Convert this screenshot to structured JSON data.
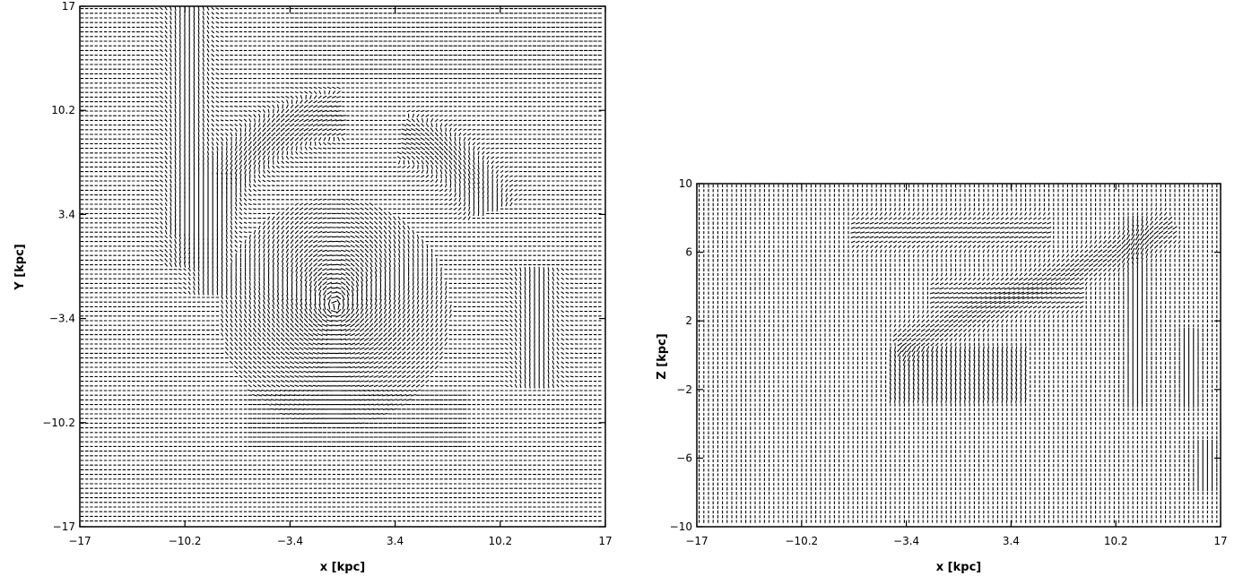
{
  "chart_data": [
    {
      "type": "vector-field",
      "title": "",
      "xlabel": "x [kpc]",
      "ylabel": "Y [kpc]",
      "xlim": [
        -17,
        17
      ],
      "ylim": [
        -17,
        17
      ],
      "xticks": [
        -17,
        -10.2,
        -3.4,
        3.4,
        10.2,
        17
      ],
      "yticks": [
        -17,
        -10.2,
        -3.4,
        3.4,
        10.2,
        17
      ],
      "xtick_labels": [
        "−17",
        "−10.2",
        "−3.4",
        "3.4",
        "10.2",
        "17"
      ],
      "ytick_labels": [
        "−17",
        "−10.2",
        "−3.4",
        "3.4",
        "10.2",
        "17"
      ],
      "grid": false,
      "colors": {
        "ink": "#000000",
        "background": "#ffffff"
      },
      "features": {
        "dense_disk": {
          "center": [
            -0.5,
            -3.0
          ],
          "radius": 7.5
        },
        "arcs": [
          {
            "center": [
              1.0,
              -1.0
            ],
            "radius": 11.0,
            "from_deg": 95,
            "to_deg": 175
          },
          {
            "center": [
              2.5,
              1.0
            ],
            "radius": 7.5,
            "from_deg": 20,
            "to_deg": 80
          }
        ],
        "vertical_streaks": [
          {
            "x": -10.0,
            "y_from": 2.0,
            "y_to": 17.0
          },
          {
            "x": -8.5,
            "y_from": -2.0,
            "y_to": 6.0
          },
          {
            "x": 12.5,
            "y_from": -8.0,
            "y_to": 0.0
          }
        ],
        "horizontal_flow": {
          "y_from": -12.0,
          "y_to": -8.0,
          "x_from": -6.0,
          "x_to": 8.0
        },
        "upper_band": {
          "y_from": 12.0,
          "y_to": 17.0,
          "x_from": -3.4,
          "x_to": 17.0
        }
      }
    },
    {
      "type": "vector-field",
      "title": "",
      "xlabel": "x [kpc]",
      "ylabel": "Z [kpc]",
      "xlim": [
        -17,
        17
      ],
      "ylim": [
        -10,
        10
      ],
      "xticks": [
        -17,
        -10.2,
        -3.4,
        3.4,
        10.2,
        17
      ],
      "yticks": [
        -10,
        -6,
        -2,
        2,
        6,
        10
      ],
      "xtick_labels": [
        "−17",
        "−10.2",
        "−3.4",
        "3.4",
        "10.2",
        "17"
      ],
      "ytick_labels": [
        "−10",
        "−6",
        "−2",
        "2",
        "6",
        "10"
      ],
      "grid": false,
      "colors": {
        "ink": "#000000",
        "background": "#ffffff"
      },
      "features": {
        "dense_slab": {
          "x_from": -4.5,
          "x_to": 4.5,
          "y_from": -2.8,
          "y_to": 0.5
        },
        "diagonal_jet": {
          "from": [
            -4.0,
            0.5
          ],
          "to": [
            14.0,
            7.5
          ]
        },
        "vertical_streaks": [
          {
            "x": 11.5,
            "y_from": -3.0,
            "y_to": 8.0
          },
          {
            "x": 15.0,
            "y_from": -3.0,
            "y_to": 1.5
          },
          {
            "x": 16.0,
            "y_from": -8.0,
            "y_to": -5.0
          }
        ],
        "horizontal_bands": [
          {
            "y": 7.2,
            "x_from": -7.0,
            "x_to": 6.0
          },
          {
            "y": 3.5,
            "x_from": -2.0,
            "x_to": 8.0
          }
        ]
      }
    }
  ]
}
